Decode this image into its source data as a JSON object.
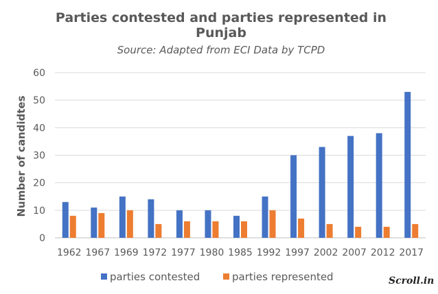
{
  "chart_data": {
    "type": "bar",
    "title_line1": "Parties contested and parties represented in",
    "title_line2": "Punjab",
    "subtitle": "Source: Adapted from ECI Data by TCPD",
    "ylabel": "Number of candidtes",
    "xlabel": "",
    "ylim": [
      0,
      60
    ],
    "yticks": [
      0,
      10,
      20,
      30,
      40,
      50,
      60
    ],
    "grid": true,
    "legend_position": "bottom",
    "categories": [
      "1962",
      "1967",
      "1969",
      "1972",
      "1977",
      "1980",
      "1985",
      "1992",
      "1997",
      "2002",
      "2007",
      "2012",
      "2017"
    ],
    "series": [
      {
        "name": "parties contested",
        "color": "#4472c4",
        "values": [
          13,
          11,
          15,
          14,
          10,
          10,
          8,
          15,
          30,
          33,
          37,
          38,
          53
        ]
      },
      {
        "name": "parties represented",
        "color": "#ed7d31",
        "values": [
          8,
          9,
          10,
          5,
          6,
          6,
          6,
          10,
          7,
          5,
          4,
          4,
          5
        ]
      }
    ]
  },
  "watermark": "Scroll.in"
}
